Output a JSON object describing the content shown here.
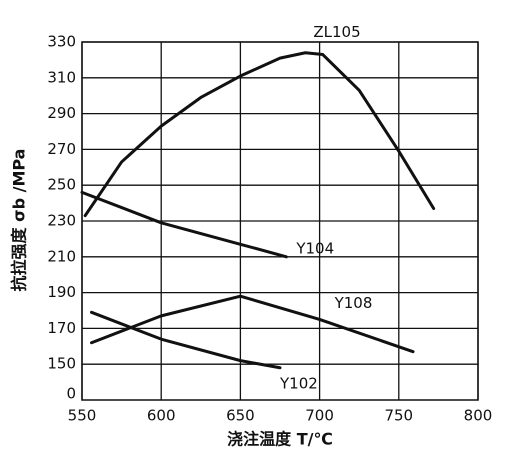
{
  "chart_data": {
    "type": "line",
    "x_label": "浇注温度 T/℃",
    "y_label": "抗拉强度 σb /MPa",
    "xlim": [
      550,
      800
    ],
    "xticks": [
      550,
      600,
      650,
      700,
      750,
      800
    ],
    "ylim": [
      130,
      330
    ],
    "yticks": [
      150,
      170,
      190,
      210,
      230,
      250,
      270,
      290,
      310,
      330
    ],
    "y_break_label": "0",
    "grid": true,
    "series": [
      {
        "name": "ZL105",
        "color": "#111111",
        "x": [
          552,
          575,
          600,
          625,
          650,
          675,
          691,
          702,
          725,
          750,
          772
        ],
        "values": [
          233,
          263,
          283,
          299,
          311,
          321,
          324,
          323,
          303,
          269,
          237
        ]
      },
      {
        "name": "Y104",
        "color": "#111111",
        "x": [
          550,
          600,
          650,
          679
        ],
        "values": [
          246,
          229,
          217,
          210
        ]
      },
      {
        "name": "Y108",
        "color": "#111111",
        "x": [
          556,
          600,
          650,
          700,
          759
        ],
        "values": [
          162,
          177,
          188,
          175,
          157
        ]
      },
      {
        "name": "Y102",
        "color": "#111111",
        "x": [
          556,
          600,
          650,
          675
        ],
        "values": [
          179,
          164,
          152,
          148
        ]
      }
    ]
  }
}
